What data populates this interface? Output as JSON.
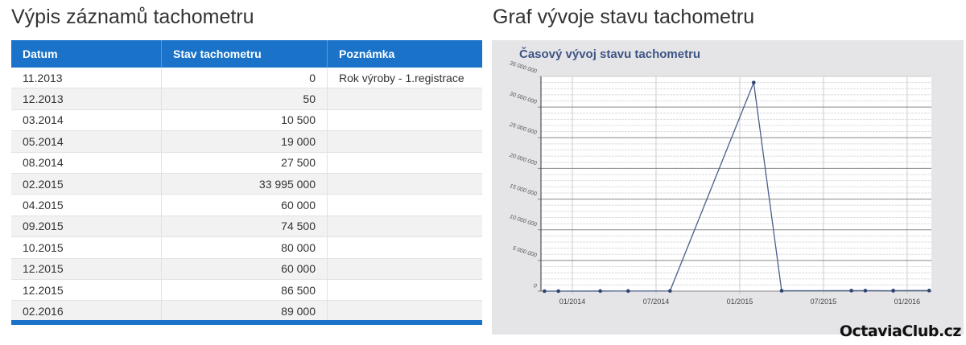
{
  "left_title": "Výpis záznamů tachometru",
  "right_title": "Graf vývoje stavu tachometru",
  "table": {
    "headers": [
      "Datum",
      "Stav tachometru",
      "Poznámka"
    ],
    "rows": [
      [
        "11.2013",
        "0",
        "Rok výroby - 1.registrace"
      ],
      [
        "12.2013",
        "50",
        ""
      ],
      [
        "03.2014",
        "10 500",
        ""
      ],
      [
        "05.2014",
        "19 000",
        ""
      ],
      [
        "08.2014",
        "27 500",
        ""
      ],
      [
        "02.2015",
        "33 995 000",
        ""
      ],
      [
        "04.2015",
        "60 000",
        ""
      ],
      [
        "09.2015",
        "74 500",
        ""
      ],
      [
        "10.2015",
        "80 000",
        ""
      ],
      [
        "12.2015",
        "60 000",
        ""
      ],
      [
        "12.2015",
        "86 500",
        ""
      ],
      [
        "02.2016",
        "89 000",
        ""
      ]
    ]
  },
  "logo": "OctaviaClub.cz",
  "chart_data": {
    "type": "line",
    "title": "Časový vývoj stavu tachometru",
    "x": [
      "2013-11",
      "2013-12",
      "2014-03",
      "2014-05",
      "2014-08",
      "2015-02",
      "2015-04",
      "2015-09",
      "2015-10",
      "2015-12",
      "2015-12",
      "2016-02"
    ],
    "values": [
      0,
      50,
      10500,
      19000,
      27500,
      33995000,
      60000,
      74500,
      80000,
      60000,
      86500,
      89000
    ],
    "ylim": [
      0,
      35000000
    ],
    "yticks": [
      "0",
      "5 000 000",
      "10 000 000",
      "15 000 000",
      "20 000 000",
      "25 000 000",
      "30 000 000",
      "35 000 000"
    ],
    "xticks": [
      "01/2014",
      "07/2014",
      "01/2015",
      "07/2015",
      "01/2016"
    ],
    "grid": true,
    "line_color": "#4a5f8a",
    "title_color": "#3e5585"
  }
}
